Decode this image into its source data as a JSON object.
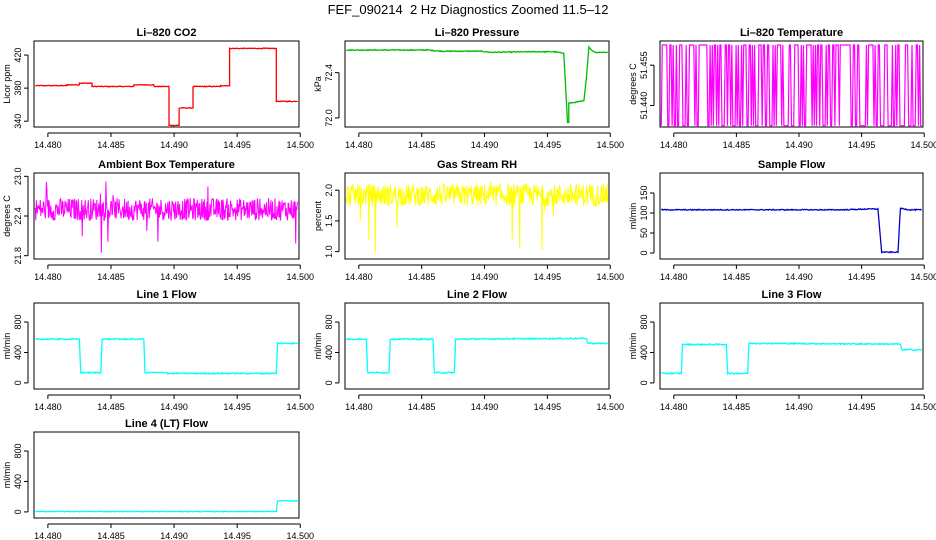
{
  "page": {
    "title": "FEF_090214  2 Hz Diagnostics Zoomed 11.5–12"
  },
  "chart_data": [
    {
      "type": "line",
      "title": "Li–820 CO2",
      "ylabel": "Licor ppm",
      "color": "#ff0000",
      "x_ticks": [
        "14.480",
        "14.485",
        "14.490",
        "14.495",
        "14.500"
      ],
      "xlim": [
        14.4789,
        14.4999
      ],
      "y_ticks": [
        "340",
        "380",
        "420"
      ],
      "y_tick_values": [
        340,
        380,
        420
      ],
      "ylim": [
        333,
        437
      ],
      "noise": 0.4,
      "series": [
        {
          "points": [
            [
              14.479,
              383
            ],
            [
              14.4815,
              383
            ],
            [
              14.4815,
              384
            ],
            [
              14.4825,
              384
            ],
            [
              14.4825,
              386
            ],
            [
              14.4835,
              386
            ],
            [
              14.4835,
              382
            ],
            [
              14.4868,
              382
            ],
            [
              14.4868,
              384
            ],
            [
              14.4884,
              384
            ],
            [
              14.4884,
              382
            ],
            [
              14.4896,
              382
            ],
            [
              14.4896,
              335
            ],
            [
              14.4904,
              335
            ],
            [
              14.4904,
              356
            ],
            [
              14.4915,
              356
            ],
            [
              14.4915,
              382
            ],
            [
              14.4937,
              382
            ],
            [
              14.4937,
              383
            ],
            [
              14.4944,
              383
            ],
            [
              14.4944,
              428
            ],
            [
              14.4981,
              428
            ],
            [
              14.4981,
              364
            ],
            [
              14.4998,
              364
            ]
          ]
        }
      ]
    },
    {
      "type": "line",
      "title": "Li–820 Pressure",
      "ylabel": "kPa",
      "color": "#00bb00",
      "x_ticks": [
        "14.480",
        "14.485",
        "14.490",
        "14.495",
        "14.500"
      ],
      "xlim": [
        14.4789,
        14.4999
      ],
      "y_ticks": [
        "72.0",
        "72.4"
      ],
      "y_tick_values": [
        72.0,
        72.4
      ],
      "ylim": [
        71.92,
        72.68
      ],
      "noise": 0.004,
      "series": [
        {
          "points": [
            [
              14.479,
              72.6
            ],
            [
              14.4855,
              72.6
            ],
            [
              14.4865,
              72.59
            ],
            [
              14.4897,
              72.59
            ],
            [
              14.4905,
              72.58
            ],
            [
              14.4937,
              72.585
            ],
            [
              14.4955,
              72.585
            ],
            [
              14.4961,
              72.575
            ],
            [
              14.4963,
              72.575
            ],
            [
              14.4966,
              71.96
            ],
            [
              14.4967,
              71.96
            ],
            [
              14.4967,
              72.13
            ],
            [
              14.4979,
              72.15
            ],
            [
              14.4981,
              72.35
            ],
            [
              14.4983,
              72.63
            ],
            [
              14.4985,
              72.6
            ],
            [
              14.4988,
              72.58
            ],
            [
              14.4998,
              72.58
            ]
          ]
        }
      ]
    },
    {
      "type": "binary",
      "title": "Li–820 Temperature",
      "ylabel": "degrees C",
      "color": "#ff00ff",
      "x_ticks": [
        "14.480",
        "14.485",
        "14.490",
        "14.495",
        "14.500"
      ],
      "xlim": [
        14.4789,
        14.4999
      ],
      "y_ticks": [
        "51.440",
        "51.455"
      ],
      "y_tick_values": [
        51.44,
        51.455
      ],
      "ylim": [
        51.432,
        51.464
      ],
      "low": 51.4325,
      "high": 51.4625
    },
    {
      "type": "noise",
      "title": "Ambient Box Temperature",
      "ylabel": "degrees C",
      "color": "#ff00ff",
      "x_ticks": [
        "14.480",
        "14.485",
        "14.490",
        "14.495",
        "14.500"
      ],
      "xlim": [
        14.4789,
        14.4999
      ],
      "y_ticks": [
        "21.8",
        "22.4",
        "23.0"
      ],
      "y_tick_values": [
        21.8,
        22.4,
        23.0
      ],
      "ylim": [
        21.75,
        23.05
      ],
      "mean": 22.5,
      "spread": 0.17,
      "spike_min": 21.8,
      "spike_max": 23.0
    },
    {
      "type": "noise",
      "title": "Gas Stream RH",
      "ylabel": "percent",
      "color": "#ffff00",
      "x_ticks": [
        "14.480",
        "14.485",
        "14.490",
        "14.495",
        "14.500"
      ],
      "xlim": [
        14.4789,
        14.4999
      ],
      "y_ticks": [
        "1.0",
        "1.5",
        "2.0"
      ],
      "y_tick_values": [
        1.0,
        1.5,
        2.0
      ],
      "ylim": [
        0.88,
        2.28
      ],
      "mean": 1.92,
      "spread": 0.18,
      "spike_min": 0.9,
      "spike_max": 2.2
    },
    {
      "type": "line",
      "title": "Sample Flow",
      "ylabel": "ml/min",
      "color": "#0000cc",
      "x_ticks": [
        "14.480",
        "14.485",
        "14.490",
        "14.495",
        "14.500"
      ],
      "xlim": [
        14.4789,
        14.4999
      ],
      "y_ticks": [
        "0",
        "50",
        "100",
        "150"
      ],
      "y_tick_values": [
        0,
        50,
        100,
        150
      ],
      "ylim": [
        -15,
        200
      ],
      "noise": 1.2,
      "series": [
        {
          "points": [
            [
              14.479,
              108
            ],
            [
              14.4935,
              108
            ],
            [
              14.4955,
              110
            ],
            [
              14.4963,
              110
            ],
            [
              14.4966,
              2
            ],
            [
              14.4979,
              2
            ],
            [
              14.4981,
              112
            ],
            [
              14.4988,
              108
            ],
            [
              14.4998,
              108
            ]
          ]
        }
      ]
    },
    {
      "type": "line",
      "title": "Line 1 Flow",
      "ylabel": "ml/min",
      "color": "#00ffff",
      "x_ticks": [
        "14.480",
        "14.485",
        "14.490",
        "14.495",
        "14.500"
      ],
      "xlim": [
        14.4789,
        14.4999
      ],
      "y_ticks": [
        "0",
        "400",
        "800"
      ],
      "y_tick_values": [
        0,
        400,
        800
      ],
      "ylim": [
        -80,
        1050
      ],
      "noise": 8,
      "series": [
        {
          "points": [
            [
              14.479,
              575
            ],
            [
              14.4825,
              575
            ],
            [
              14.4826,
              135
            ],
            [
              14.4842,
              135
            ],
            [
              14.4843,
              575
            ],
            [
              14.4876,
              575
            ],
            [
              14.4877,
              135
            ],
            [
              14.4894,
              135
            ],
            [
              14.4895,
              125
            ],
            [
              14.4981,
              125
            ],
            [
              14.4982,
              520
            ],
            [
              14.4998,
              520
            ]
          ]
        }
      ]
    },
    {
      "type": "line",
      "title": "Line 2 Flow",
      "ylabel": "ml/min",
      "color": "#00ffff",
      "x_ticks": [
        "14.480",
        "14.485",
        "14.490",
        "14.495",
        "14.500"
      ],
      "xlim": [
        14.4789,
        14.4999
      ],
      "y_ticks": [
        "0",
        "400",
        "800"
      ],
      "y_tick_values": [
        0,
        400,
        800
      ],
      "ylim": [
        -80,
        1050
      ],
      "noise": 8,
      "series": [
        {
          "points": [
            [
              14.479,
              575
            ],
            [
              14.4806,
              575
            ],
            [
              14.4807,
              135
            ],
            [
              14.4824,
              135
            ],
            [
              14.4825,
              575
            ],
            [
              14.4859,
              575
            ],
            [
              14.486,
              135
            ],
            [
              14.4876,
              135
            ],
            [
              14.4877,
              575
            ],
            [
              14.4981,
              585
            ],
            [
              14.4982,
              520
            ],
            [
              14.4998,
              520
            ]
          ]
        }
      ]
    },
    {
      "type": "line",
      "title": "Line 3 Flow",
      "ylabel": "ml/min",
      "color": "#00ffff",
      "x_ticks": [
        "14.480",
        "14.485",
        "14.490",
        "14.495",
        "14.500"
      ],
      "xlim": [
        14.4789,
        14.4999
      ],
      "y_ticks": [
        "0",
        "400",
        "800"
      ],
      "y_tick_values": [
        0,
        400,
        800
      ],
      "ylim": [
        -80,
        1050
      ],
      "noise": 8,
      "series": [
        {
          "points": [
            [
              14.479,
              125
            ],
            [
              14.4806,
              125
            ],
            [
              14.4807,
              505
            ],
            [
              14.4842,
              505
            ],
            [
              14.4843,
              125
            ],
            [
              14.4859,
              125
            ],
            [
              14.486,
              520
            ],
            [
              14.4981,
              510
            ],
            [
              14.4982,
              435
            ],
            [
              14.4998,
              435
            ]
          ]
        }
      ]
    },
    {
      "type": "line",
      "title": "Line 4 (LT) Flow",
      "ylabel": "ml/min",
      "color": "#00ffff",
      "x_ticks": [
        "14.480",
        "14.485",
        "14.490",
        "14.495",
        "14.500"
      ],
      "xlim": [
        14.4789,
        14.4999
      ],
      "y_ticks": [
        "0",
        "400",
        "800"
      ],
      "y_tick_values": [
        0,
        400,
        800
      ],
      "ylim": [
        -80,
        1050
      ],
      "noise": 4,
      "series": [
        {
          "points": [
            [
              14.479,
              5
            ],
            [
              14.4981,
              5
            ],
            [
              14.4982,
              145
            ],
            [
              14.4998,
              145
            ]
          ]
        }
      ]
    }
  ]
}
